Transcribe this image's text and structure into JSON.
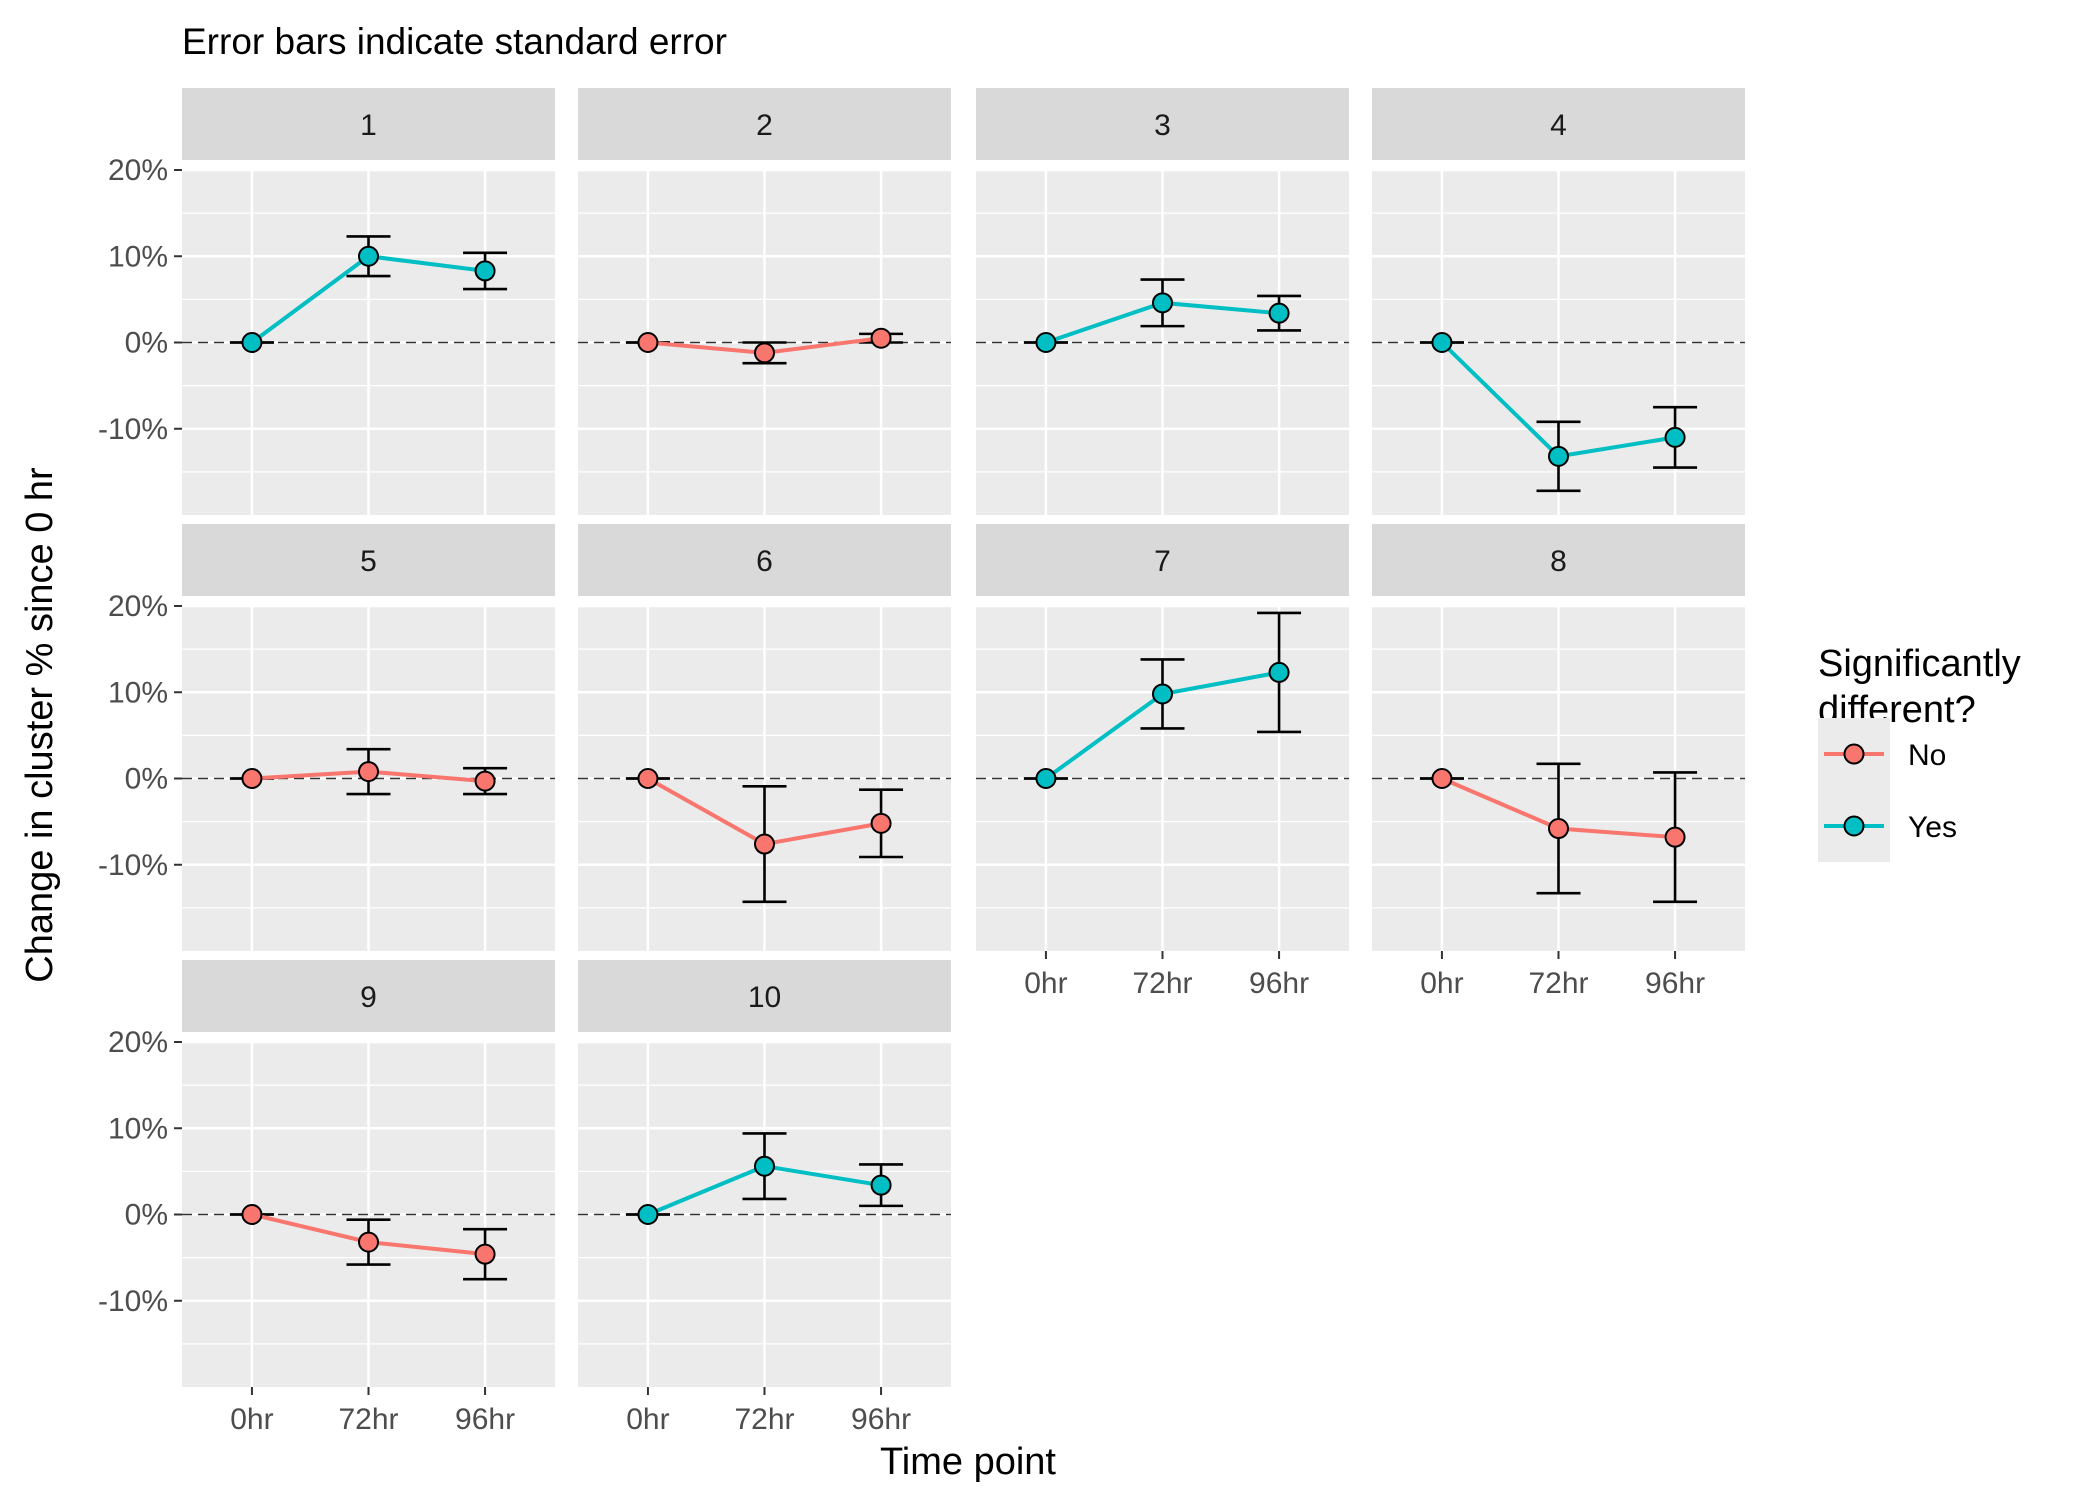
{
  "chart_data": {
    "type": "line",
    "title": "Error bars indicate standard error",
    "xlabel": "Time point",
    "ylabel": "Change in cluster % since 0 hr",
    "categories": [
      "0hr",
      "72hr",
      "96hr"
    ],
    "y_unit": "%",
    "ylim": [
      -20,
      20
    ],
    "y_ticks": [
      20,
      10,
      0,
      -10
    ],
    "y_tick_labels": [
      "20%",
      "10%",
      "0%",
      "-10%"
    ],
    "reference_line": 0,
    "legend": {
      "title": "Significantly different?",
      "placement": "right",
      "entries": [
        {
          "label": "No",
          "color": "#F8766D"
        },
        {
          "label": "Yes",
          "color": "#00BFC4"
        }
      ]
    },
    "panels": [
      {
        "label": "1",
        "significant": "Yes",
        "values": [
          0,
          10.0,
          8.3
        ],
        "se": [
          0,
          2.3,
          2.1
        ]
      },
      {
        "label": "2",
        "significant": "No",
        "values": [
          0,
          -1.2,
          0.5
        ],
        "se": [
          0,
          1.2,
          0.5
        ]
      },
      {
        "label": "3",
        "significant": "Yes",
        "values": [
          0,
          4.6,
          3.4
        ],
        "se": [
          0,
          2.7,
          2.0
        ]
      },
      {
        "label": "4",
        "significant": "Yes",
        "values": [
          0,
          -13.2,
          -11.0
        ],
        "se": [
          0,
          4.0,
          3.5
        ]
      },
      {
        "label": "5",
        "significant": "No",
        "values": [
          0,
          0.8,
          -0.3
        ],
        "se": [
          0,
          2.6,
          1.5
        ]
      },
      {
        "label": "6",
        "significant": "No",
        "values": [
          0,
          -7.6,
          -5.2
        ],
        "se": [
          0,
          6.7,
          3.9
        ]
      },
      {
        "label": "7",
        "significant": "Yes",
        "values": [
          0,
          9.8,
          12.3
        ],
        "se": [
          0,
          4.0,
          6.9
        ]
      },
      {
        "label": "8",
        "significant": "No",
        "values": [
          0,
          -5.8,
          -6.8
        ],
        "se": [
          0,
          7.5,
          7.5
        ]
      },
      {
        "label": "9",
        "significant": "No",
        "values": [
          0,
          -3.2,
          -4.6
        ],
        "se": [
          0,
          2.6,
          2.9
        ]
      },
      {
        "label": "10",
        "significant": "Yes",
        "values": [
          0,
          5.6,
          3.4
        ],
        "se": [
          0,
          3.8,
          2.4
        ]
      }
    ],
    "colors": {
      "No": "#F8766D",
      "Yes": "#00BFC4",
      "panel_background": "#EBEBEB",
      "strip_background": "#D9D9D9",
      "grid": "#FFFFFF"
    }
  }
}
